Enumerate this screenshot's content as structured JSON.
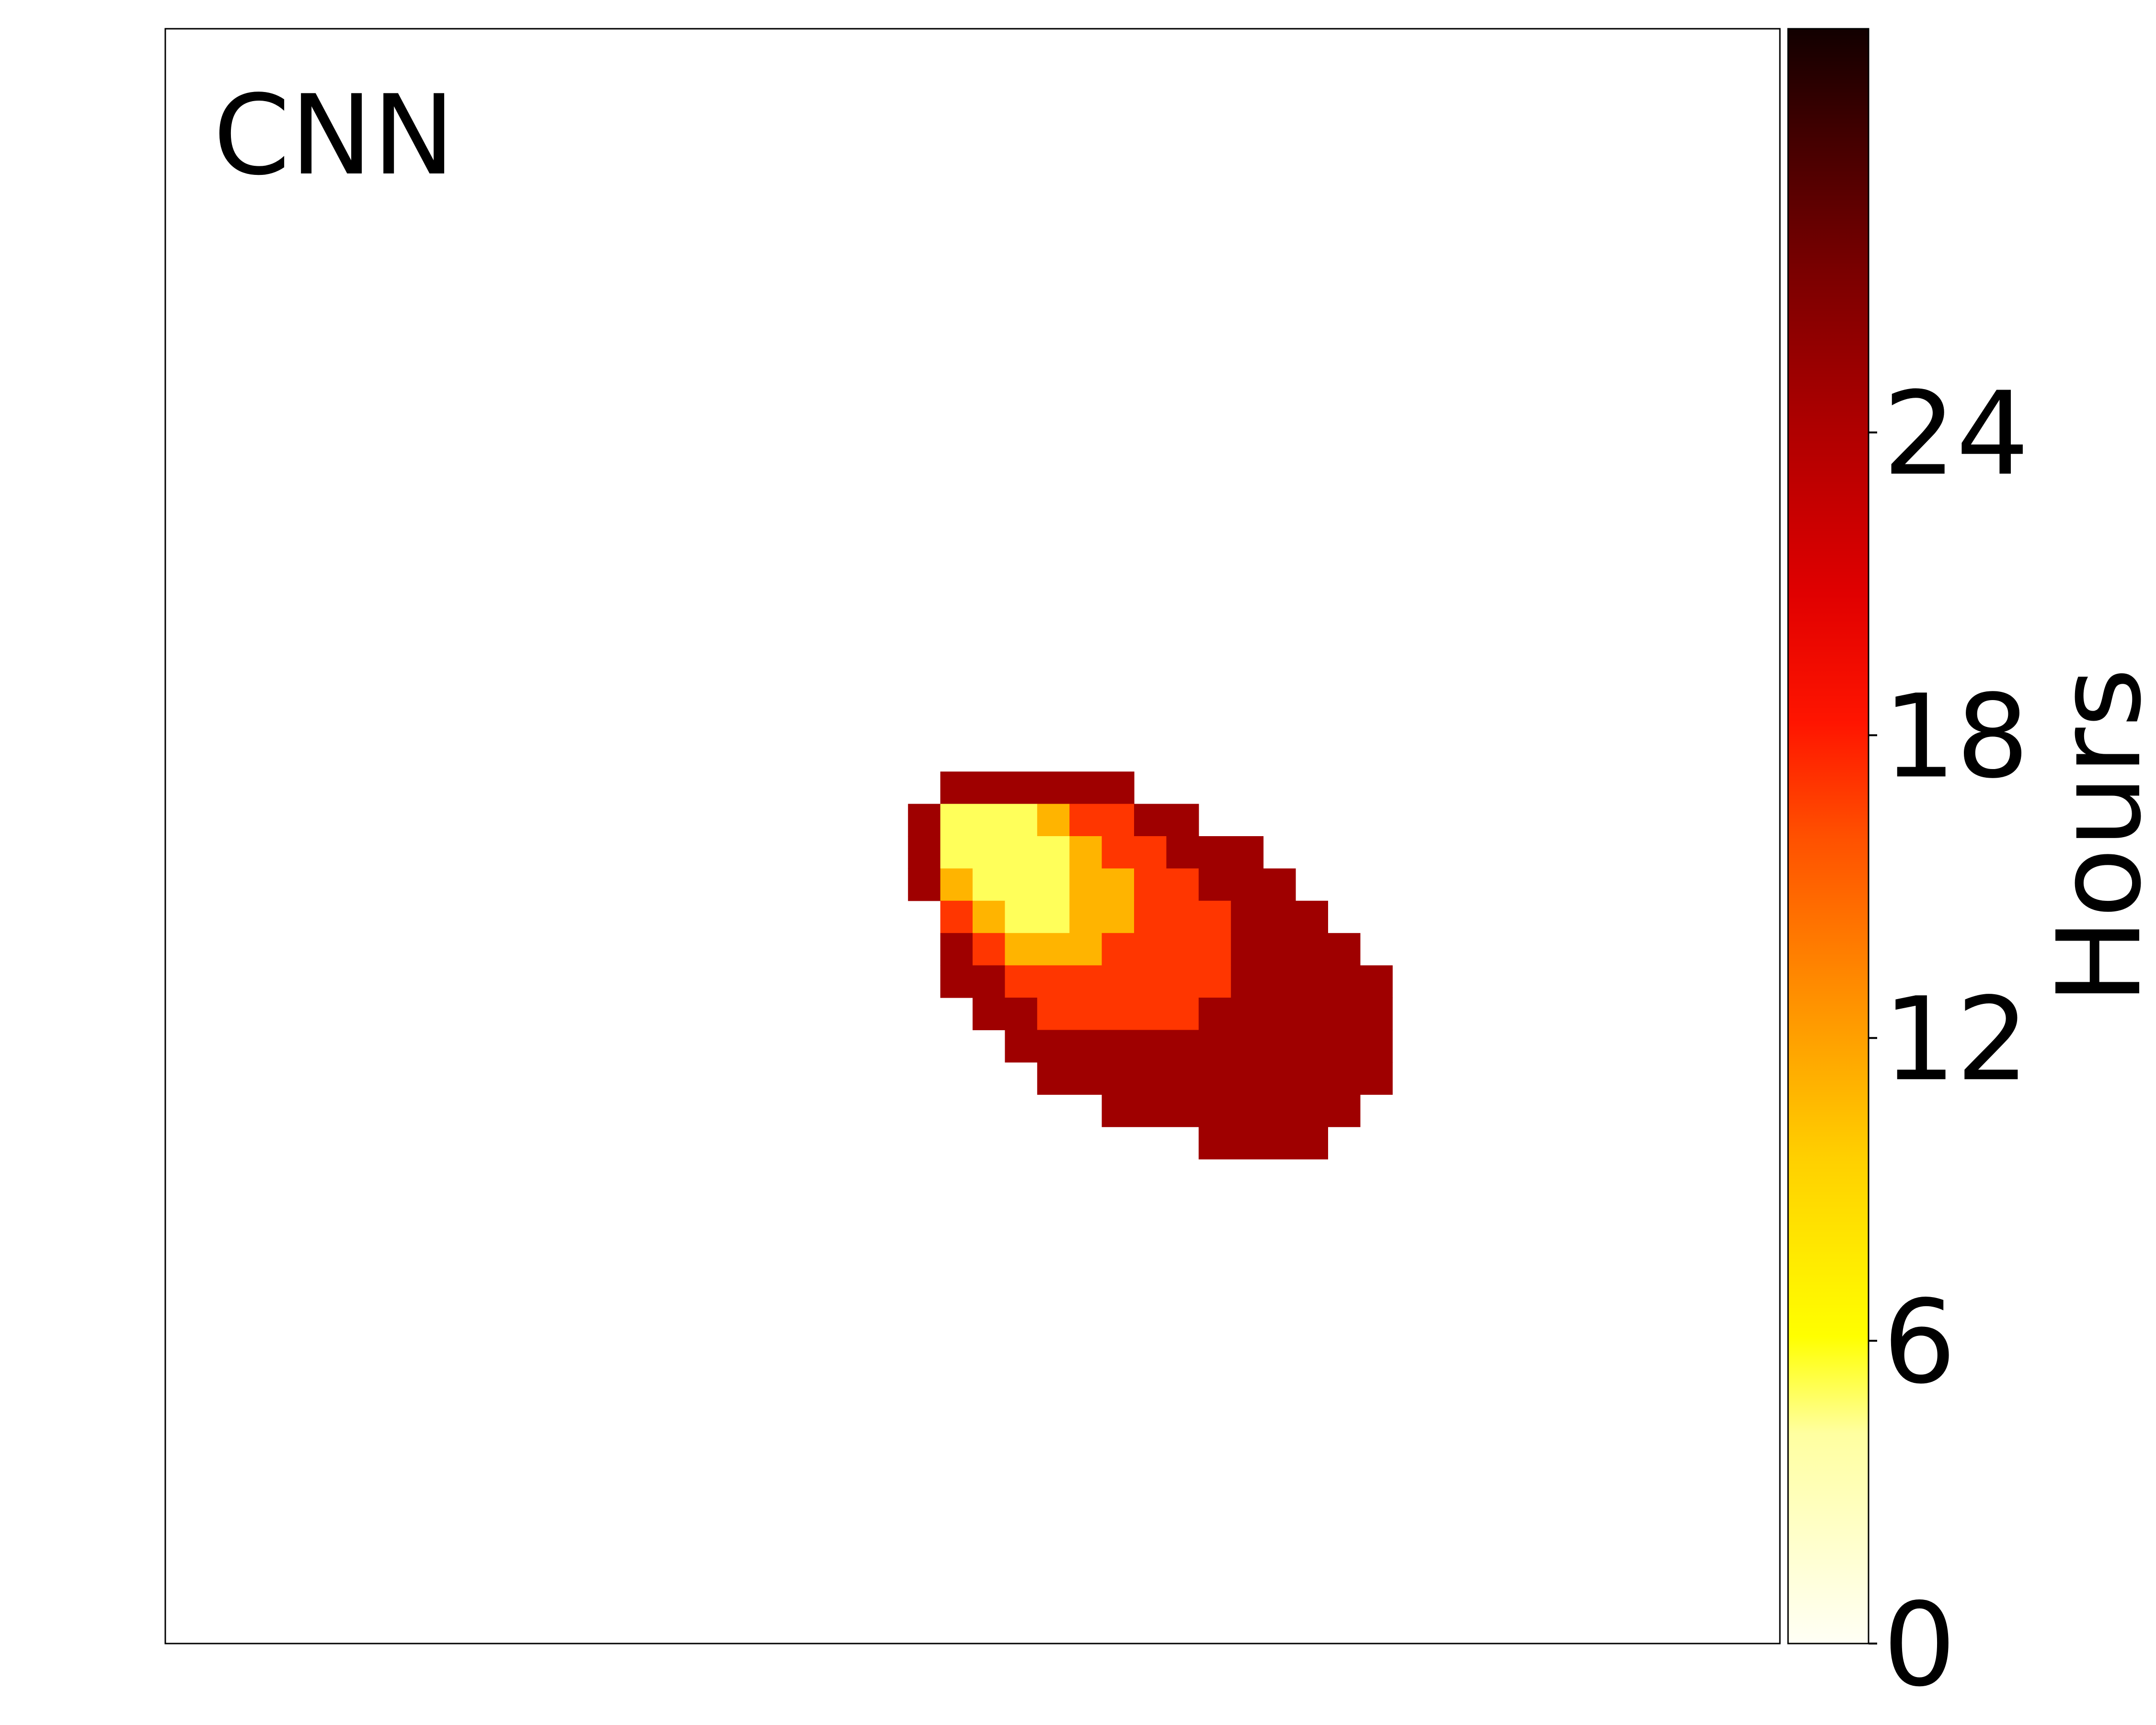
{
  "chart_data": {
    "type": "heatmap",
    "panel_label": "CNN",
    "colorbar": {
      "label": "Hours",
      "colormap": "hot_r",
      "range": [
        0,
        32
      ],
      "ticks": [
        0,
        6,
        12,
        18,
        24
      ]
    },
    "grid": false,
    "cell_columns": 50,
    "cell_rows": 50,
    "cells": [
      {
        "row": 23,
        "col_start": 24,
        "col_end": 29,
        "value": 25
      },
      {
        "row": 24,
        "col_start": 23,
        "col_end": 23,
        "value": 25
      },
      {
        "row": 24,
        "col_start": 24,
        "col_end": 26,
        "value": 5
      },
      {
        "row": 24,
        "col_start": 27,
        "col_end": 27,
        "value": 11
      },
      {
        "row": 24,
        "col_start": 28,
        "col_end": 29,
        "value": 17
      },
      {
        "row": 24,
        "col_start": 30,
        "col_end": 31,
        "value": 25
      },
      {
        "row": 25,
        "col_start": 23,
        "col_end": 23,
        "value": 25
      },
      {
        "row": 25,
        "col_start": 24,
        "col_end": 26,
        "value": 5
      },
      {
        "row": 25,
        "col_start": 27,
        "col_end": 27,
        "value": 5
      },
      {
        "row": 25,
        "col_start": 28,
        "col_end": 28,
        "value": 11
      },
      {
        "row": 25,
        "col_start": 29,
        "col_end": 30,
        "value": 17
      },
      {
        "row": 25,
        "col_start": 31,
        "col_end": 33,
        "value": 25
      },
      {
        "row": 26,
        "col_start": 23,
        "col_end": 23,
        "value": 25
      },
      {
        "row": 26,
        "col_start": 24,
        "col_end": 24,
        "value": 11
      },
      {
        "row": 26,
        "col_start": 25,
        "col_end": 27,
        "value": 5
      },
      {
        "row": 26,
        "col_start": 28,
        "col_end": 29,
        "value": 11
      },
      {
        "row": 26,
        "col_start": 30,
        "col_end": 31,
        "value": 17
      },
      {
        "row": 26,
        "col_start": 32,
        "col_end": 34,
        "value": 25
      },
      {
        "row": 27,
        "col_start": 24,
        "col_end": 24,
        "value": 17
      },
      {
        "row": 27,
        "col_start": 25,
        "col_end": 25,
        "value": 11
      },
      {
        "row": 27,
        "col_start": 26,
        "col_end": 27,
        "value": 5
      },
      {
        "row": 27,
        "col_start": 28,
        "col_end": 29,
        "value": 11
      },
      {
        "row": 27,
        "col_start": 30,
        "col_end": 32,
        "value": 17
      },
      {
        "row": 27,
        "col_start": 33,
        "col_end": 35,
        "value": 25
      },
      {
        "row": 28,
        "col_start": 24,
        "col_end": 24,
        "value": 25
      },
      {
        "row": 28,
        "col_start": 25,
        "col_end": 25,
        "value": 17
      },
      {
        "row": 28,
        "col_start": 26,
        "col_end": 28,
        "value": 11
      },
      {
        "row": 28,
        "col_start": 29,
        "col_end": 32,
        "value": 17
      },
      {
        "row": 28,
        "col_start": 33,
        "col_end": 36,
        "value": 25
      },
      {
        "row": 29,
        "col_start": 24,
        "col_end": 25,
        "value": 25
      },
      {
        "row": 29,
        "col_start": 26,
        "col_end": 32,
        "value": 17
      },
      {
        "row": 29,
        "col_start": 33,
        "col_end": 37,
        "value": 25
      },
      {
        "row": 30,
        "col_start": 25,
        "col_end": 26,
        "value": 25
      },
      {
        "row": 30,
        "col_start": 27,
        "col_end": 31,
        "value": 17
      },
      {
        "row": 30,
        "col_start": 32,
        "col_end": 37,
        "value": 25
      },
      {
        "row": 31,
        "col_start": 26,
        "col_end": 37,
        "value": 25
      },
      {
        "row": 32,
        "col_start": 27,
        "col_end": 37,
        "value": 25
      },
      {
        "row": 33,
        "col_start": 29,
        "col_end": 36,
        "value": 25
      },
      {
        "row": 34,
        "col_start": 32,
        "col_end": 35,
        "value": 25
      }
    ]
  }
}
